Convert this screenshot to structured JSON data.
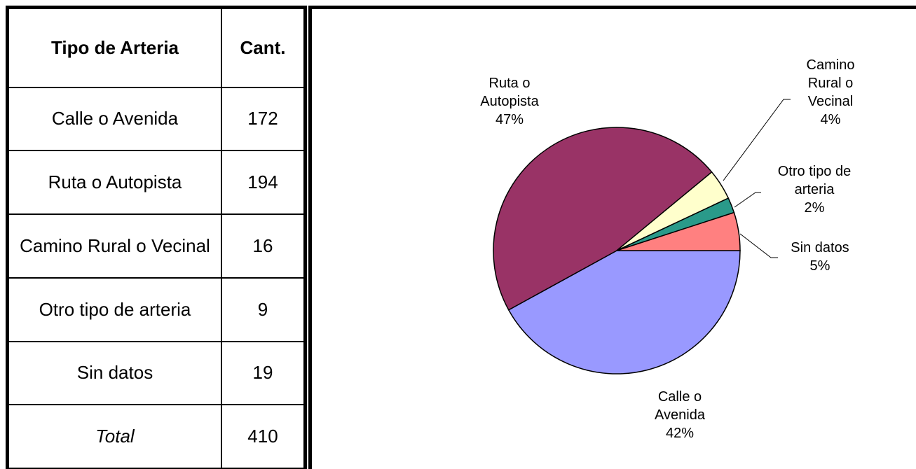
{
  "table": {
    "header": [
      "Tipo de Arteria",
      "Cant."
    ],
    "rows": [
      [
        "Calle o Avenida",
        "172"
      ],
      [
        "Ruta o Autopista",
        "194"
      ],
      [
        "Camino Rural o Vecinal",
        "16"
      ],
      [
        "Otro tipo de arteria",
        "9"
      ],
      [
        "Sin datos",
        "19"
      ],
      [
        "Total",
        "410"
      ]
    ]
  },
  "chart_data": {
    "type": "pie",
    "categories": [
      "Calle o Avenida",
      "Ruta o Autopista",
      "Camino Rural o Vecinal",
      "Otro tipo de arteria",
      "Sin datos"
    ],
    "values": [
      42,
      47,
      4,
      2,
      5
    ],
    "value_labels": [
      "42%",
      "47%",
      "4%",
      "2%",
      "5%"
    ],
    "colors": [
      "#9999ff",
      "#993366",
      "#ffffcc",
      "#2a9a8a",
      "#ff8080"
    ]
  }
}
